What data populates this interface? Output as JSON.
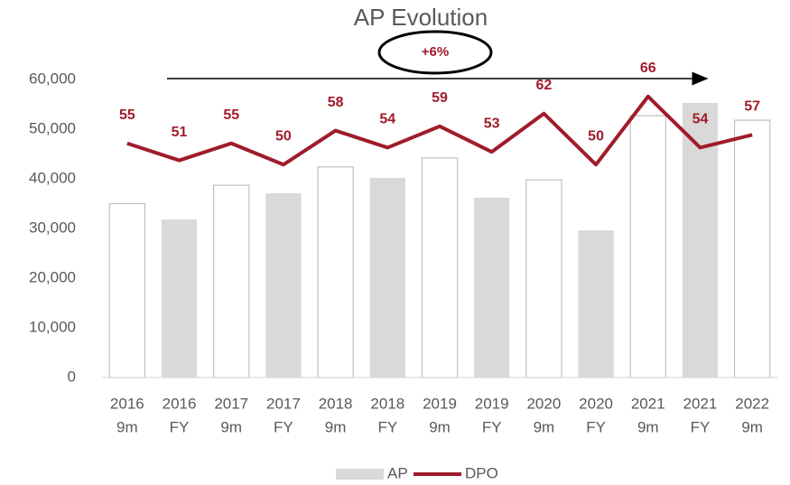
{
  "chart_data": {
    "type": "bar_line",
    "title": "AP Evolution",
    "annotations": [
      "+6%"
    ],
    "categories": [
      [
        "2016",
        "9m"
      ],
      [
        "2016",
        "FY"
      ],
      [
        "2017",
        "9m"
      ],
      [
        "2017",
        "FY"
      ],
      [
        "2018",
        "9m"
      ],
      [
        "2018",
        "FY"
      ],
      [
        "2019",
        "9m"
      ],
      [
        "2019",
        "FY"
      ],
      [
        "2020",
        "9m"
      ],
      [
        "2020",
        "FY"
      ],
      [
        "2021",
        "9m"
      ],
      [
        "2021",
        "FY"
      ],
      [
        "2022",
        "9m"
      ]
    ],
    "series": [
      {
        "name": "AP",
        "type": "bar",
        "color": "#d9d9d9",
        "colors": [
          "#ffffff",
          "#d9d9d9",
          "#ffffff",
          "#d9d9d9",
          "#ffffff",
          "#d9d9d9",
          "#ffffff",
          "#d9d9d9",
          "#ffffff",
          "#d9d9d9",
          "#ffffff",
          "#d9d9d9",
          "#ffffff"
        ],
        "values": [
          35000,
          31800,
          38700,
          37100,
          42400,
          40200,
          44200,
          36200,
          39800,
          29600,
          52700,
          55300,
          51800
        ]
      },
      {
        "name": "DPO",
        "type": "line",
        "axis": "y2",
        "color": "#a01c2b",
        "values": [
          55,
          51,
          55,
          50,
          58,
          54,
          59,
          53,
          62,
          50,
          66,
          54,
          57
        ]
      }
    ],
    "ylim": [
      0,
      60000
    ],
    "yticks": [
      0,
      {
        "value": 10000,
        "label": "10,000"
      },
      {
        "value": 20000,
        "label": "20,000"
      },
      {
        "value": 30000,
        "label": "30,000"
      },
      {
        "value": 40000,
        "label": "40,000"
      },
      {
        "value": 50000,
        "label": "50,000"
      },
      {
        "value": 60000,
        "label": "60,000"
      }
    ],
    "y2lim": [
      0,
      70
    ],
    "grid": false,
    "legend": "bottom"
  }
}
